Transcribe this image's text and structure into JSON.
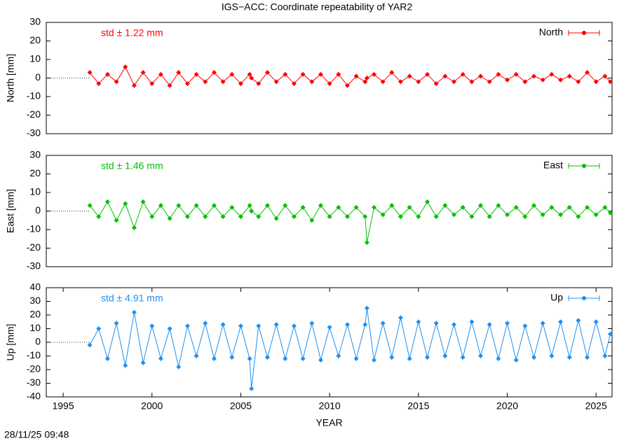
{
  "chart_data": [
    {
      "type": "line",
      "title": "IGS−ACC: Coordinate repeatability of YAR2",
      "ylabel": "North [mm]",
      "annotation": "std ± 1.22 mm",
      "legend": "top right",
      "grid": false,
      "xlim": [
        1994.05,
        2025.9
      ],
      "ylim": [
        -30,
        30
      ],
      "yticks": [
        -30,
        -20,
        -10,
        0,
        10,
        20,
        30
      ],
      "x": [
        1996.5,
        1997,
        1997.5,
        1998,
        1998.5,
        1999,
        1999.5,
        2000,
        2000.5,
        2001,
        2001.5,
        2002,
        2002.5,
        2003,
        2003.5,
        2004,
        2004.5,
        2005,
        2005.5,
        2005.6,
        2006,
        2006.5,
        2007,
        2007.5,
        2008,
        2008.5,
        2009,
        2009.5,
        2010,
        2010.5,
        2011,
        2011.5,
        2012,
        2012.1,
        2012.5,
        2013,
        2013.5,
        2014,
        2014.5,
        2015,
        2015.5,
        2016,
        2016.5,
        2017,
        2017.5,
        2018,
        2018.5,
        2019,
        2019.5,
        2020,
        2020.5,
        2021,
        2021.5,
        2022,
        2022.5,
        2023,
        2023.5,
        2024,
        2024.5,
        2025,
        2025.5,
        2025.8
      ],
      "series": [
        {
          "name": "North",
          "color": "#ff0000",
          "values": [
            3,
            -3,
            2,
            -2,
            6,
            -4,
            3,
            -3,
            2,
            -4,
            3,
            -3,
            2,
            -2,
            3,
            -2,
            2,
            -3,
            2,
            0,
            -3,
            3,
            -2,
            2,
            -3,
            2,
            -2,
            2,
            -3,
            2,
            -4,
            1,
            -2,
            0,
            2,
            -2,
            3,
            -2,
            1,
            -2,
            2,
            -3,
            1,
            -2,
            2,
            -2,
            1,
            -2,
            2,
            -1,
            2,
            -2,
            1,
            -1,
            2,
            -1,
            1,
            -2,
            3,
            -2,
            1,
            -2
          ]
        }
      ]
    },
    {
      "type": "line",
      "ylabel": "East [mm]",
      "annotation": "std ± 1.46 mm",
      "legend": "top right",
      "grid": false,
      "xlim": [
        1994.05,
        2025.9
      ],
      "ylim": [
        -30,
        30
      ],
      "yticks": [
        -30,
        -20,
        -10,
        0,
        10,
        20,
        30
      ],
      "x": [
        1996.5,
        1997,
        1997.5,
        1998,
        1998.5,
        1999,
        1999.5,
        2000,
        2000.5,
        2001,
        2001.5,
        2002,
        2002.5,
        2003,
        2003.5,
        2004,
        2004.5,
        2005,
        2005.5,
        2005.6,
        2006,
        2006.5,
        2007,
        2007.5,
        2008,
        2008.5,
        2009,
        2009.5,
        2010,
        2010.5,
        2011,
        2011.5,
        2012,
        2012.1,
        2012.5,
        2013,
        2013.5,
        2014,
        2014.5,
        2015,
        2015.5,
        2016,
        2016.5,
        2017,
        2017.5,
        2018,
        2018.5,
        2019,
        2019.5,
        2020,
        2020.5,
        2021,
        2021.5,
        2022,
        2022.5,
        2023,
        2023.5,
        2024,
        2024.5,
        2025,
        2025.5,
        2025.8
      ],
      "series": [
        {
          "name": "East",
          "color": "#00c000",
          "values": [
            3,
            -3,
            5,
            -5,
            4,
            -9,
            5,
            -3,
            3,
            -4,
            3,
            -3,
            3,
            -3,
            3,
            -3,
            2,
            -3,
            3,
            0,
            -3,
            3,
            -4,
            3,
            -3,
            2,
            -5,
            3,
            -3,
            2,
            -3,
            2,
            -3,
            -17,
            2,
            -2,
            3,
            -3,
            2,
            -3,
            5,
            -3,
            3,
            -2,
            2,
            -3,
            3,
            -3,
            3,
            -2,
            2,
            -3,
            3,
            -2,
            2,
            -2,
            2,
            -3,
            2,
            -2,
            2,
            -1
          ]
        }
      ]
    },
    {
      "type": "line",
      "ylabel": "Up [mm]",
      "xlabel": "YEAR",
      "annotation": "std ± 4.91 mm",
      "legend": "top right",
      "grid": false,
      "xlim": [
        1994.05,
        2025.9
      ],
      "ylim": [
        -40,
        40
      ],
      "yticks": [
        -40,
        -30,
        -20,
        -10,
        0,
        10,
        20,
        30,
        40
      ],
      "xticks": [
        1995,
        2000,
        2005,
        2010,
        2015,
        2020,
        2025
      ],
      "x": [
        1996.5,
        1997,
        1997.5,
        1998,
        1998.5,
        1999,
        1999.5,
        2000,
        2000.5,
        2001,
        2001.5,
        2002,
        2002.5,
        2003,
        2003.5,
        2004,
        2004.5,
        2005,
        2005.5,
        2005.6,
        2006,
        2006.5,
        2007,
        2007.5,
        2008,
        2008.5,
        2009,
        2009.5,
        2010,
        2010.5,
        2011,
        2011.5,
        2012,
        2012.1,
        2012.5,
        2013,
        2013.5,
        2014,
        2014.5,
        2015,
        2015.5,
        2016,
        2016.5,
        2017,
        2017.5,
        2018,
        2018.5,
        2019,
        2019.5,
        2020,
        2020.5,
        2021,
        2021.5,
        2022,
        2022.5,
        2023,
        2023.5,
        2024,
        2024.5,
        2025,
        2025.5,
        2025.8
      ],
      "series": [
        {
          "name": "Up",
          "color": "#1e90f0",
          "values": [
            -2,
            10,
            -12,
            14,
            -17,
            22,
            -15,
            12,
            -12,
            10,
            -18,
            12,
            -10,
            14,
            -12,
            13,
            -11,
            12,
            -12,
            -34,
            12,
            -11,
            13,
            -12,
            12,
            -12,
            14,
            -13,
            11,
            -10,
            13,
            -12,
            13,
            25,
            -13,
            14,
            -11,
            18,
            -12,
            15,
            -11,
            14,
            -10,
            13,
            -11,
            15,
            -10,
            13,
            -12,
            14,
            -13,
            12,
            -11,
            14,
            -10,
            15,
            -11,
            16,
            -11,
            15,
            -10,
            6
          ]
        }
      ]
    }
  ],
  "timestamp": "28/11/25 09:48"
}
